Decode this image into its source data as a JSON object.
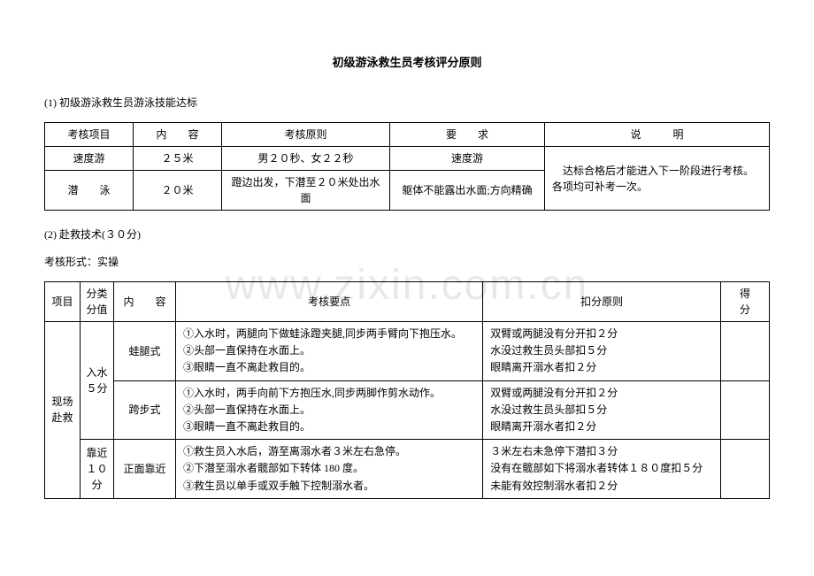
{
  "title": "初级游泳救生员考核评分原则",
  "section1": {
    "label": "(1) 初级游泳救生员游泳技能达标",
    "headers": {
      "item": "考核项目",
      "content": "内　　容",
      "principle": "考核原则",
      "requirement": "要　　求",
      "note": "说　　　明"
    },
    "rows": [
      {
        "item": "速度游",
        "content": "２５米",
        "principle": "男２０秒、女２２秒",
        "requirement": "速度游"
      },
      {
        "item": "潜　　泳",
        "content": "２０米",
        "principle": "蹬边出发，下潜至２０米处出水面",
        "requirement": "躯体不能露出水面;方向精确"
      }
    ],
    "note_merged": "　达标合格后才能进入下一阶段进行考核。各项均可补考一次。"
  },
  "section2": {
    "label": "(2) 赴救技术(３０分)",
    "form": "考核形式：实操",
    "headers": {
      "project": "项目",
      "category": "分类分值",
      "content": "内　　容",
      "keypoint": "考核要点",
      "deduction": "扣分原则",
      "score": "得　　分"
    },
    "project_merged": "现场赴救",
    "groups": [
      {
        "category": "入水５分",
        "rows": [
          {
            "content": "蛙腿式",
            "keypoint": "①入水时，两腿向下做蛙泳蹬夹腿,同步两手臂向下抱压水。\n②头部一直保持在水面上。\n③眼睛一直不离赴救目的。",
            "deduction": "双臂或两腿没有分开扣２分\n水没过救生员头部扣５分\n眼睛离开溺水者扣２分"
          },
          {
            "content": "跨步式",
            "keypoint": "①入水时，两手向前下方抱压水,同步两脚作剪水动作。\n②头部一直保持在水面上。\n③眼睛一直不离赴救目的。",
            "deduction": "双臂或两腿没有分开扣２分\n水没过救生员头部扣５分\n眼睛离开溺水者扣２分"
          }
        ]
      },
      {
        "category": "靠近１０分",
        "rows": [
          {
            "content": "正面靠近",
            "keypoint": "①救生员入水后，游至离溺水者３米左右急停。\n②下潜至溺水者髋部如下转体 180 度。\n③救生员以单手或双手触下控制溺水者。",
            "deduction": "３米左右未急停下潜扣３分\n没有在髋部如下将溺水者转体１８０度扣５分\n未能有效控制溺水者扣２分"
          }
        ]
      }
    ]
  }
}
